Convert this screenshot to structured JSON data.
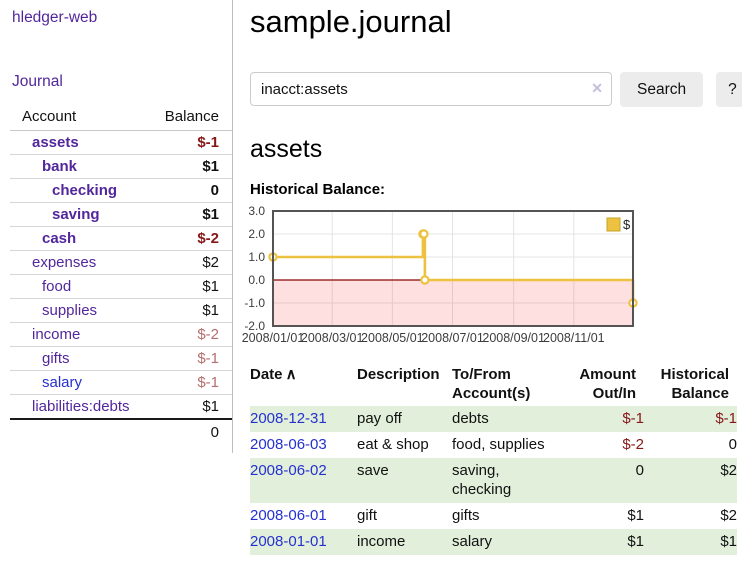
{
  "colors": {
    "link_purple": "#52279c",
    "link_blue": "#2531cf",
    "negative_strong": "#871717",
    "negative_soft": "#b56e6e",
    "row_stripe_green": "#e2efdb",
    "chart_line_gold": "#edc240",
    "chart_zero_line": "#8c0606",
    "chart_negative_fill": "rgba(255,0,0,0.12)",
    "chart_border": "#545454",
    "chart_grid": "#e4e4e4"
  },
  "sidebar": {
    "brand": "hledger-web",
    "journal_label": "Journal",
    "accounts_table": {
      "headers": [
        "Account",
        "Balance"
      ],
      "rows": [
        {
          "account": "assets",
          "indent": 1,
          "bold": true,
          "balance": "$-1",
          "balance_class": "neg-strong"
        },
        {
          "account": "bank",
          "indent": 2,
          "bold": true,
          "balance": "$1",
          "balance_class": ""
        },
        {
          "account": "checking",
          "indent": 3,
          "bold": true,
          "balance": "0",
          "balance_class": ""
        },
        {
          "account": "saving",
          "indent": 3,
          "bold": true,
          "balance": "$1",
          "balance_class": ""
        },
        {
          "account": "cash",
          "indent": 2,
          "bold": true,
          "balance": "$-2",
          "balance_class": "neg-strong"
        },
        {
          "account": "expenses",
          "indent": 1,
          "bold": false,
          "balance": "$2",
          "balance_class": ""
        },
        {
          "account": "food",
          "indent": 2,
          "bold": false,
          "balance": "$1",
          "balance_class": ""
        },
        {
          "account": "supplies",
          "indent": 2,
          "bold": false,
          "balance": "$1",
          "balance_class": ""
        },
        {
          "account": "income",
          "indent": 1,
          "bold": false,
          "balance": "$-2",
          "balance_class": "neg-soft"
        },
        {
          "account": "gifts",
          "indent": 2,
          "bold": false,
          "balance": "$-1",
          "balance_class": "neg-soft"
        },
        {
          "account": "salary",
          "indent": 2,
          "bold": false,
          "blue": true,
          "balance": "$-1",
          "balance_class": "neg-soft"
        },
        {
          "account": "liabilities:debts",
          "indent": 1,
          "bold": false,
          "balance": "$1",
          "balance_class": ""
        }
      ],
      "total": "0"
    }
  },
  "header": {
    "title": "sample.journal"
  },
  "search": {
    "value": "inacct:assets",
    "clear_icon": "✕",
    "button_label": "Search",
    "help_label": "?"
  },
  "account_page": {
    "heading": "assets",
    "chart_label": "Historical Balance:"
  },
  "chart_data": {
    "type": "line",
    "title": "Historical Balance:",
    "x_range": [
      "2008-01-01",
      "2008-12-31"
    ],
    "ylim": [
      -2,
      3
    ],
    "grid": true,
    "legend_position": "top-right",
    "series": [
      {
        "name": "$",
        "color": "#edc240",
        "steps": true,
        "points": [
          [
            "2008-01-01",
            1
          ],
          [
            "2008-06-01",
            2
          ],
          [
            "2008-06-02",
            2
          ],
          [
            "2008-06-03",
            0
          ],
          [
            "2008-12-31",
            -1
          ]
        ]
      }
    ],
    "x_ticks": [
      "2008/01/01",
      "2008/03/01",
      "2008/05/01",
      "2008/07/01",
      "2008/09/01",
      "2008/11/01"
    ],
    "y_ticks": [
      "3.0",
      "2.0",
      "1.0",
      "0.0",
      "-1.0",
      "-2.0"
    ],
    "negative_region": {
      "from": 0,
      "to": -2
    },
    "legend": {
      "label": "$"
    }
  },
  "register": {
    "headers": [
      {
        "label": "Date",
        "sort_icon": "∧",
        "sortable": true
      },
      {
        "label": "Description"
      },
      {
        "label": "To/From Account(s)"
      },
      {
        "label": "Amount Out/In",
        "align": "right"
      },
      {
        "label": "Historical Balance",
        "align": "right"
      }
    ],
    "rows": [
      {
        "date": "2008-12-31",
        "description": "pay off",
        "accounts": "debts",
        "amount": "$-1",
        "amount_neg": true,
        "balance": "$-1",
        "balance_neg": true
      },
      {
        "date": "2008-06-03",
        "description": "eat & shop",
        "accounts": "food, supplies",
        "amount": "$-2",
        "amount_neg": true,
        "balance": "0",
        "balance_neg": false
      },
      {
        "date": "2008-06-02",
        "description": "save",
        "accounts": "saving, checking",
        "amount": "0",
        "amount_neg": false,
        "balance": "$2",
        "balance_neg": false
      },
      {
        "date": "2008-06-01",
        "description": "gift",
        "accounts": "gifts",
        "amount": "$1",
        "amount_neg": false,
        "balance": "$2",
        "balance_neg": false
      },
      {
        "date": "2008-01-01",
        "description": "income",
        "accounts": "salary",
        "amount": "$1",
        "amount_neg": false,
        "balance": "$1",
        "balance_neg": false
      }
    ]
  }
}
